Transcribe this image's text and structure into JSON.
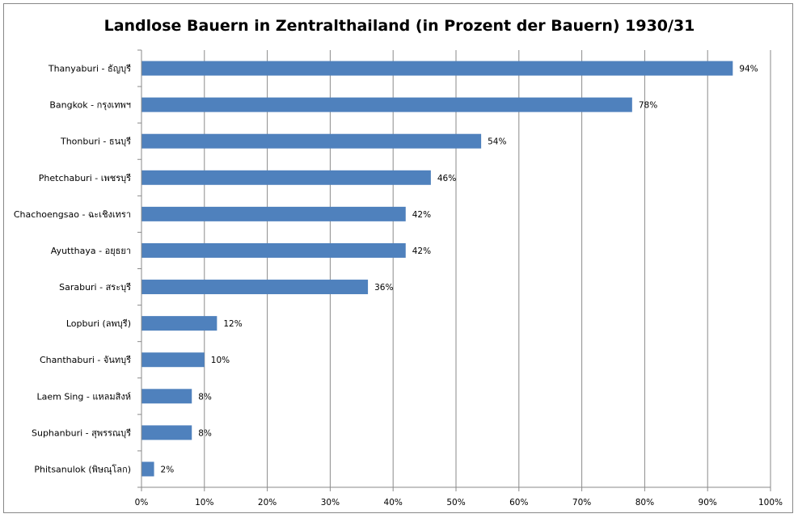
{
  "chart_data": {
    "type": "bar",
    "orientation": "horizontal",
    "title": "Landlose Bauern in Zentralthailand (in Prozent der Bauern) 1930/31",
    "xlabel": "",
    "ylabel": "",
    "xlim": [
      0,
      100
    ],
    "x_ticks": [
      "0%",
      "10%",
      "20%",
      "30%",
      "40%",
      "50%",
      "60%",
      "70%",
      "80%",
      "90%",
      "100%"
    ],
    "grid": "vertical",
    "bar_color": "#4F81BD",
    "categories": [
      "Thanyaburi - ธัญบุรี",
      "Bangkok - กรุงเทพฯ",
      "Thonburi - ธนบุรี",
      "Phetchaburi - เพชรบุรี",
      "Chachoengsao - ฉะเชิงเทรา",
      "Ayutthaya - อยุธยา",
      "Saraburi - สระบุรี",
      "Lopburi (ลพบุรี)",
      "Chanthaburi - จันทบุรี",
      "Laem Sing - แหลมสิงห์",
      "Suphanburi - สุพรรณบุรี",
      "Phitsanulok (พิษณุโลก)"
    ],
    "values": [
      94,
      78,
      54,
      46,
      42,
      42,
      36,
      12,
      10,
      8,
      8,
      2
    ],
    "data_labels": [
      "94%",
      "78%",
      "54%",
      "46%",
      "42%",
      "42%",
      "36%",
      "12%",
      "10%",
      "8%",
      "8%",
      "2%"
    ]
  }
}
